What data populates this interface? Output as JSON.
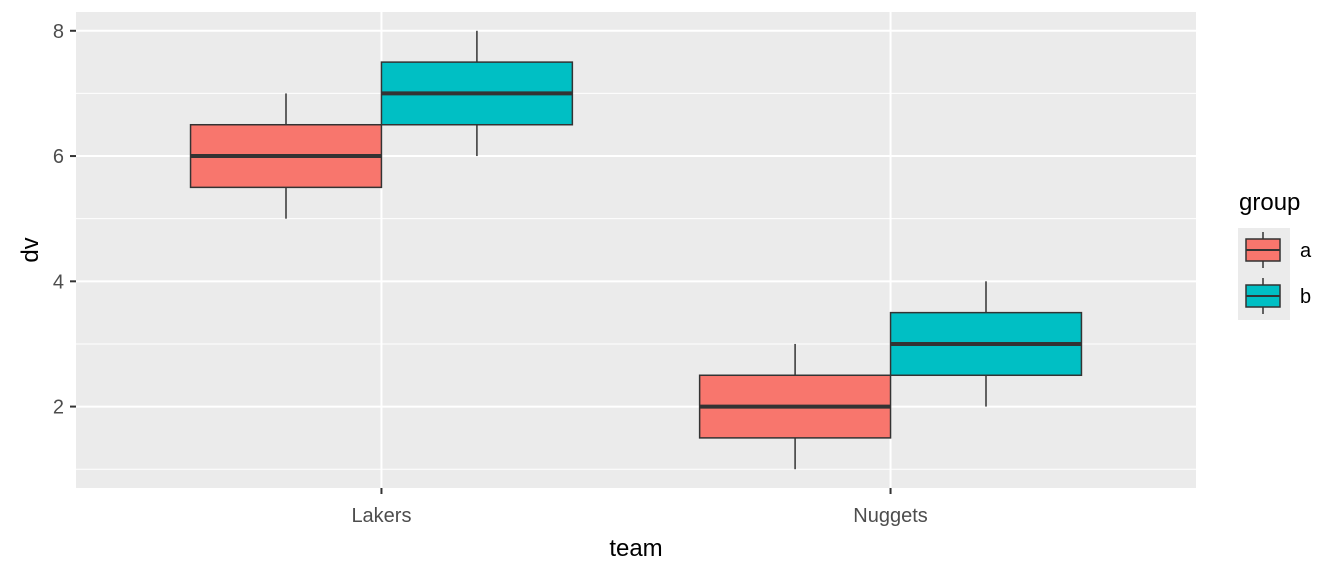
{
  "chart_data": {
    "type": "boxplot",
    "xlabel": "team",
    "ylabel": "dv",
    "categories": [
      "Lakers",
      "Nuggets"
    ],
    "ylim": [
      0.7,
      8.3
    ],
    "y_ticks": [
      2,
      4,
      6,
      8
    ],
    "grid": true,
    "legend": {
      "title": "group",
      "position": "right"
    },
    "series": [
      {
        "name": "a",
        "color": "#F8766D",
        "boxes": [
          {
            "category": "Lakers",
            "min": 5,
            "q1": 5.5,
            "median": 6,
            "q3": 6.5,
            "max": 7
          },
          {
            "category": "Nuggets",
            "min": 1,
            "q1": 1.5,
            "median": 2,
            "q3": 2.5,
            "max": 3
          }
        ]
      },
      {
        "name": "b",
        "color": "#00BFC4",
        "boxes": [
          {
            "category": "Lakers",
            "min": 6,
            "q1": 6.5,
            "median": 7,
            "q3": 7.5,
            "max": 8
          },
          {
            "category": "Nuggets",
            "min": 2,
            "q1": 2.5,
            "median": 3,
            "q3": 3.5,
            "max": 4
          }
        ]
      }
    ]
  }
}
